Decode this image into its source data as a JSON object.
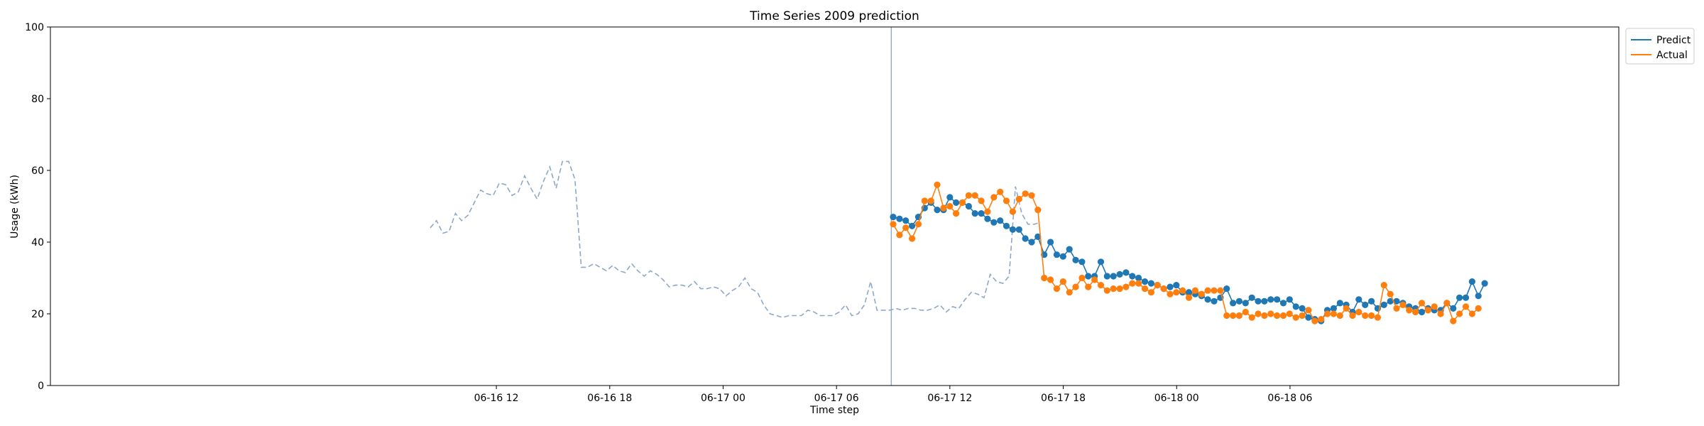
{
  "chart_data": {
    "type": "line",
    "title": "Time Series 2009 prediction",
    "xlabel": "Time step",
    "ylabel": "Usage (kWh)",
    "ylim": [
      0,
      100
    ],
    "yticks": [
      0,
      20,
      40,
      60,
      80,
      100
    ],
    "xlim_hours": [
      -11.6,
      71.4
    ],
    "x_origin": "2009-06-16 00:00",
    "xticks": [
      {
        "label": "06-16 12",
        "hour": 12
      },
      {
        "label": "06-16 18",
        "hour": 18
      },
      {
        "label": "06-17 00",
        "hour": 24
      },
      {
        "label": "06-17 06",
        "hour": 30
      },
      {
        "label": "06-17 12",
        "hour": 36
      },
      {
        "label": "06-17 18",
        "hour": 42
      },
      {
        "label": "06-18 00",
        "hour": 48
      },
      {
        "label": "06-18 06",
        "hour": 54
      }
    ],
    "split_hour": 32.9,
    "legend_position": "top-right",
    "history": {
      "color": "#8fa8c8",
      "start_hour": 8.5,
      "step_hours": 0.333,
      "values": [
        44,
        46,
        42.5,
        43,
        48,
        46,
        47.5,
        51,
        54.5,
        53.5,
        53,
        56.5,
        56,
        53,
        54,
        58.5,
        55,
        52,
        57,
        61,
        55,
        62.5,
        62.5,
        57.5,
        33,
        33,
        34,
        33,
        32,
        33.5,
        32,
        31.5,
        34,
        32,
        30.5,
        32,
        31,
        29.5,
        27.5,
        28,
        28,
        27.5,
        29,
        27,
        27,
        27.5,
        27,
        25,
        26.5,
        27.5,
        30,
        27,
        26,
        22.5,
        20,
        19.5,
        19,
        19.5,
        19.5,
        19.5,
        21,
        20.5,
        19.5,
        19.5,
        19.5,
        20.5,
        22.5,
        19.5,
        20,
        22.5,
        29,
        21,
        21,
        21,
        21.5,
        21,
        21.5,
        21.5,
        21,
        21,
        21.5,
        22.5,
        20.5,
        22,
        21.5,
        24,
        26,
        25.5,
        24.5,
        31,
        29,
        28.5,
        30.5,
        55.5,
        48,
        45,
        45,
        45.5
      ]
    },
    "series": [
      {
        "name": "Predict",
        "color": "#1f77b4",
        "start_hour": 33,
        "step_hours": 0.333,
        "values": [
          47,
          46.5,
          46,
          44.5,
          47,
          49.5,
          51,
          49,
          49,
          52.5,
          51,
          51,
          50,
          48,
          48,
          46.5,
          45.5,
          46,
          44.5,
          43.5,
          43.5,
          41,
          40,
          41.5,
          36.5,
          40,
          36.5,
          36,
          38,
          35,
          34.5,
          30.5,
          30.5,
          34.5,
          30.5,
          30.5,
          31,
          31.5,
          30.5,
          30,
          29,
          28.5,
          28,
          27,
          27.5,
          28,
          26,
          26,
          25.5,
          25,
          24,
          23.5,
          24.5,
          27,
          23,
          23.5,
          23,
          24.5,
          23.5,
          23.5,
          24,
          24,
          23,
          24,
          22,
          21.5,
          19,
          18.5,
          18,
          21,
          21.5,
          23,
          22.5,
          20.5,
          24,
          22.5,
          23.5,
          21.5,
          22.5,
          23.5,
          23.5,
          23,
          22,
          21.5,
          20.5,
          21.5,
          21,
          21,
          23,
          21.5,
          24.5,
          24.5,
          29,
          25,
          28.5
        ]
      },
      {
        "name": "Actual",
        "color": "#ff7f0e",
        "start_hour": 33,
        "step_hours": 0.333,
        "values": [
          45,
          42,
          44,
          41,
          45,
          51.5,
          51.5,
          56,
          49.5,
          50,
          48,
          51,
          53,
          53,
          51.5,
          48.5,
          52.5,
          54,
          51.5,
          48.5,
          52,
          53.5,
          53,
          49,
          30,
          29.5,
          27,
          29,
          26,
          27.5,
          30,
          27.5,
          29.5,
          28,
          26.5,
          27,
          27,
          27.5,
          28.5,
          28.5,
          27,
          26,
          28,
          27,
          25.5,
          26,
          26.5,
          24.5,
          26.5,
          25.5,
          26.5,
          26.5,
          26.5,
          19.5,
          19.5,
          19.5,
          20.5,
          19,
          20,
          19.5,
          20,
          19.5,
          19.5,
          20,
          19,
          19.5,
          21,
          18,
          18.5,
          20,
          20,
          19.5,
          21.5,
          19.5,
          20.5,
          19.5,
          19.5,
          19,
          28,
          25.5,
          21.5,
          22.5,
          21,
          20.5,
          23,
          21,
          22,
          20,
          23,
          18,
          20,
          22,
          20,
          21.5
        ]
      }
    ]
  }
}
